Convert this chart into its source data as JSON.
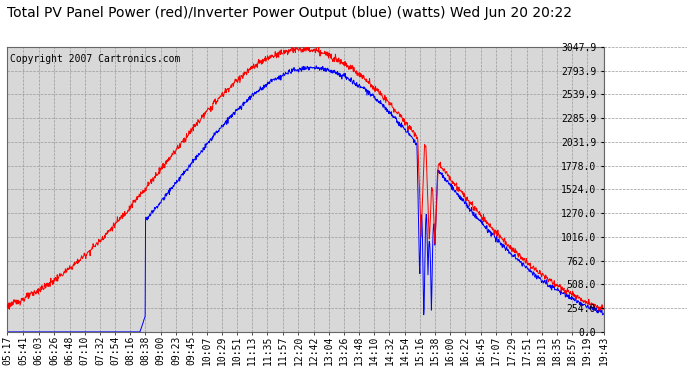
{
  "title": "Total PV Panel Power (red)/Inverter Power Output (blue) (watts) Wed Jun 20 20:22",
  "copyright": "Copyright 2007 Cartronics.com",
  "bg_color": "#ffffff",
  "plot_bg_color": "#d8d8d8",
  "grid_color": "#aaaaaa",
  "red_color": "#ff0000",
  "blue_color": "#0000ff",
  "ymin": 0.0,
  "ymax": 3047.9,
  "yticks": [
    0.0,
    254.0,
    508.0,
    762.0,
    1016.0,
    1270.0,
    1524.0,
    1778.0,
    2031.9,
    2285.9,
    2539.9,
    2793.9,
    3047.9
  ],
  "xtick_labels": [
    "05:17",
    "05:41",
    "06:03",
    "06:26",
    "06:48",
    "07:10",
    "07:32",
    "07:54",
    "08:16",
    "08:38",
    "09:00",
    "09:23",
    "09:45",
    "10:07",
    "10:29",
    "10:51",
    "11:13",
    "11:35",
    "11:57",
    "12:20",
    "12:42",
    "13:04",
    "13:26",
    "13:48",
    "14:10",
    "14:32",
    "14:54",
    "15:16",
    "15:38",
    "16:00",
    "16:22",
    "16:45",
    "17:07",
    "17:29",
    "17:51",
    "18:13",
    "18:35",
    "18:57",
    "19:19",
    "19:43"
  ],
  "title_fontsize": 10,
  "copyright_fontsize": 7,
  "tick_fontsize": 7
}
